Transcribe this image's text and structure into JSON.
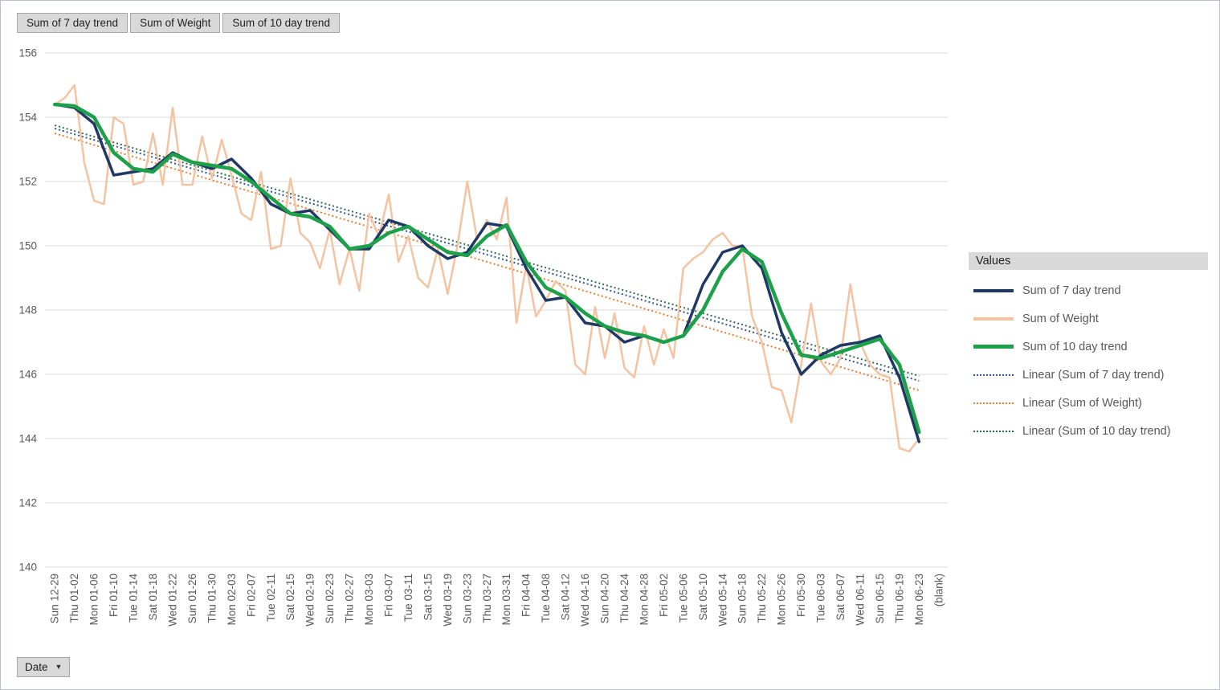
{
  "field_buttons": [
    {
      "label": "Sum of 7 day trend"
    },
    {
      "label": "Sum of Weight"
    },
    {
      "label": "Sum of 10 day trend"
    }
  ],
  "axis_field_button": {
    "label": "Date"
  },
  "legend": {
    "title": "Values",
    "entries": [
      {
        "label": "Sum of 7 day trend",
        "color": "#1F3864",
        "style": "solid",
        "thickness": 4
      },
      {
        "label": "Sum of Weight",
        "color": "#F4C3A1",
        "style": "solid",
        "thickness": 4
      },
      {
        "label": "Sum of 10 day trend",
        "color": "#1CA049",
        "style": "solid",
        "thickness": 5
      },
      {
        "label": "Linear (Sum of 7 day trend)",
        "color": "#305496",
        "style": "dotted"
      },
      {
        "label": "Linear (Sum of Weight)",
        "color": "#ED7D31",
        "style": "dotted"
      },
      {
        "label": "Linear (Sum of 10 day trend)",
        "color": "#2F6C4F",
        "style": "dotted"
      }
    ]
  },
  "chart_data": {
    "type": "line",
    "title": "",
    "xlabel": "Date",
    "ylabel": "",
    "ylim": [
      140,
      156
    ],
    "yticks": [
      140,
      142,
      144,
      146,
      148,
      150,
      152,
      154,
      156
    ],
    "grid": true,
    "legend_position": "right",
    "axis_color": "#595959",
    "gridline_color": "#D9D9D9",
    "categories": [
      "Sun 12-29",
      "Thu 01-02",
      "Mon 01-06",
      "Fri 01-10",
      "Tue 01-14",
      "Sat 01-18",
      "Wed 01-22",
      "Sun 01-26",
      "Thu 01-30",
      "Mon 02-03",
      "Fri 02-07",
      "Tue 02-11",
      "Sat 02-15",
      "Wed 02-19",
      "Sun 02-23",
      "Thu 02-27",
      "Mon 03-03",
      "Fri 03-07",
      "Tue 03-11",
      "Sat 03-15",
      "Wed 03-19",
      "Sun 03-23",
      "Thu 03-27",
      "Mon 03-31",
      "Fri 04-04",
      "Tue 04-08",
      "Sat 04-12",
      "Wed 04-16",
      "Sun 04-20",
      "Thu 04-24",
      "Mon 04-28",
      "Fri 05-02",
      "Tue 05-06",
      "Sat 05-10",
      "Wed 05-14",
      "Sun 05-18",
      "Thu 05-22",
      "Mon 05-26",
      "Fri 05-30",
      "Tue 06-03",
      "Sat 06-07",
      "Wed 06-11",
      "Sun 06-15",
      "Thu 06-19",
      "Mon 06-23",
      "(blank)"
    ],
    "series": [
      {
        "name": "Sum of 7 day trend",
        "color": "#1F3864",
        "width": 3.5,
        "step": 2,
        "values": [
          154.4,
          154.3,
          153.8,
          152.2,
          152.3,
          152.4,
          152.9,
          152.6,
          152.4,
          152.7,
          152.1,
          151.3,
          151.0,
          151.1,
          150.5,
          149.9,
          149.9,
          150.8,
          150.6,
          150.0,
          149.6,
          149.8,
          150.7,
          150.6,
          149.3,
          148.3,
          148.4,
          147.6,
          147.5,
          147.0,
          147.2,
          147.0,
          147.2,
          148.8,
          149.8,
          150.0,
          149.3,
          147.3,
          146.0,
          146.6,
          146.9,
          147.0,
          147.2,
          145.9,
          143.9
        ]
      },
      {
        "name": "Sum of Weight",
        "color": "#F4C3A1",
        "width": 2.5,
        "step": 1,
        "values": [
          154.4,
          154.6,
          155.0,
          152.6,
          151.4,
          151.3,
          154.0,
          153.8,
          151.9,
          152.0,
          153.5,
          151.9,
          154.3,
          151.9,
          151.9,
          153.4,
          152.1,
          153.3,
          152.2,
          151.0,
          150.8,
          152.3,
          149.9,
          150.0,
          152.1,
          150.4,
          150.1,
          149.3,
          150.5,
          148.8,
          149.9,
          148.6,
          151.0,
          150.3,
          151.6,
          149.5,
          150.3,
          149.0,
          148.7,
          149.9,
          148.5,
          150.0,
          152.0,
          150.2,
          150.8,
          150.2,
          151.5,
          147.6,
          149.4,
          147.8,
          148.3,
          148.9,
          148.6,
          146.3,
          146.0,
          148.1,
          146.5,
          147.9,
          146.2,
          145.9,
          147.5,
          146.3,
          147.4,
          146.5,
          149.3,
          149.6,
          149.8,
          150.2,
          150.4,
          150.0,
          150.0,
          147.8,
          147.0,
          145.6,
          145.5,
          144.5,
          146.3,
          148.2,
          146.4,
          146.0,
          146.5,
          148.8,
          147.0,
          146.3,
          146.0,
          145.9,
          143.7,
          143.6,
          144.0
        ]
      },
      {
        "name": "Sum of 10 day trend",
        "color": "#1CA049",
        "width": 4.5,
        "step": 2,
        "values": [
          154.4,
          154.35,
          154.0,
          152.9,
          152.4,
          152.3,
          152.85,
          152.6,
          152.5,
          152.4,
          152.0,
          151.5,
          151.0,
          150.9,
          150.6,
          149.9,
          150.0,
          150.4,
          150.6,
          150.2,
          149.8,
          149.7,
          150.3,
          150.65,
          149.5,
          148.7,
          148.4,
          147.9,
          147.5,
          147.3,
          147.2,
          147.0,
          147.2,
          148.0,
          149.2,
          149.9,
          149.5,
          147.9,
          146.6,
          146.5,
          146.7,
          146.9,
          147.1,
          146.3,
          144.2
        ]
      }
    ],
    "trendlines": [
      {
        "name": "Linear (Sum of 7 day trend)",
        "color": "#305496",
        "start": 153.65,
        "end": 145.8
      },
      {
        "name": "Linear (Sum of Weight)",
        "color": "#ED7D31",
        "start": 153.5,
        "end": 145.5
      },
      {
        "name": "Linear (Sum of 10 day trend)",
        "color": "#2F6C4F",
        "start": 153.75,
        "end": 145.95
      }
    ]
  }
}
